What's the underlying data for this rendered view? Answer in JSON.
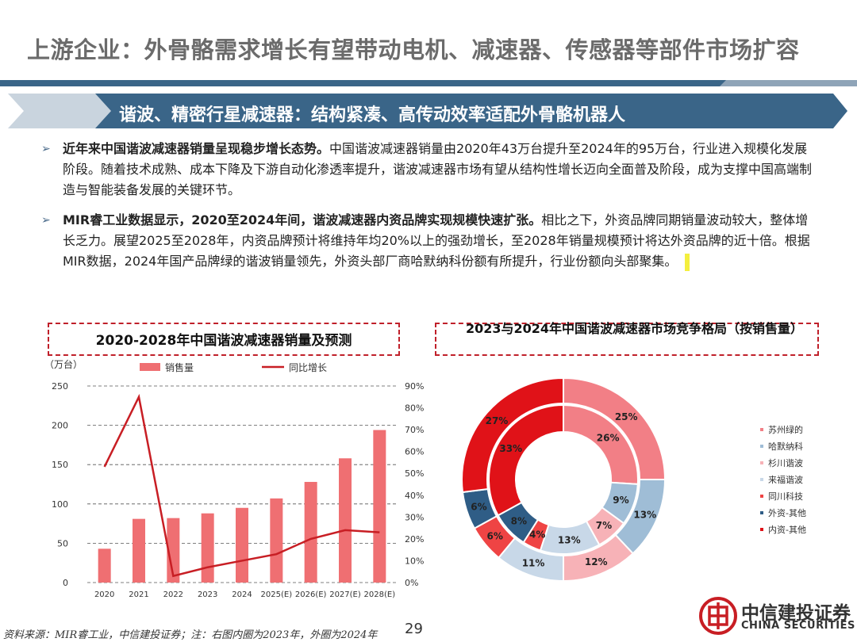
{
  "header": {
    "title": "上游企业：外骨骼需求增长有望带动电机、减速器、传感器等部件市场扩容",
    "banner": "谐波、精密行星减速器：结构紧凑、高传动效率适配外骨骼机器人"
  },
  "bullets": [
    {
      "mark": "➢",
      "bold": "近年来中国谐波减速器销量呈现稳步增长态势。",
      "text": "中国谐波减速器销量由2020年43万台提升至2024年的95万台，行业进入规模化发展阶段。随着技术成熟、成本下降及下游自动化渗透率提升，谐波减速器市场有望从结构性增长迈向全面普及阶段，成为支撑中国高端制造与智能装备发展的关键环节。"
    },
    {
      "mark": "➢",
      "bold": "MIR睿工业数据显示，2020至2024年间，谐波减速器内资品牌实现规模快速扩张。",
      "text": "相比之下，外资品牌同期销量波动较大，整体增长乏力。展望2025至2028年，内资品牌预计将维持年均20%以上的强劲增长，至2028年销量规模预计将达外资品牌的近十倍。根据MIR数据，2024年国产品牌绿的谐波销量领先，外资头部厂商哈默纳科份额有所提升，行业份额向头部聚集。"
    }
  ],
  "chart_data": [
    {
      "type": "bar",
      "title": "2020-2028年中国谐波减速器销量及预测",
      "unit_label": "（万台）",
      "categories": [
        "2020",
        "2021",
        "2022",
        "2023",
        "2024",
        "2025(E)",
        "2026(E)",
        "2027(E)",
        "2028(E)"
      ],
      "series": [
        {
          "name": "销售量",
          "type": "bar",
          "color": "#ef6f72",
          "axis": "left",
          "values": [
            43,
            81,
            82,
            88,
            95,
            107,
            128,
            158,
            194
          ]
        },
        {
          "name": "同比增长",
          "type": "line",
          "color": "#c81e24",
          "axis": "right",
          "values": [
            53,
            85,
            3,
            7,
            10,
            13,
            20,
            24,
            23
          ]
        }
      ],
      "ylim": [
        0,
        250
      ],
      "yticks": [
        "0",
        "50",
        "100",
        "150",
        "200",
        "250"
      ],
      "y2lim": [
        0,
        90
      ],
      "y2ticks": [
        "0%",
        "10%",
        "20%",
        "30%",
        "40%",
        "50%",
        "60%",
        "70%",
        "80%",
        "90%"
      ],
      "grid": true
    },
    {
      "type": "pie",
      "title": "2023与2024年中国谐波减速器市场竞争格局（按销售量）",
      "categories": [
        "苏州绿的",
        "哈默纳科",
        "杉川谐波",
        "来福谐波",
        "同川科技",
        "外资-其他",
        "内资-其他"
      ],
      "colors": [
        "#f27f86",
        "#9fbdd6",
        "#f7b2b7",
        "#c8d8e8",
        "#ef4444",
        "#2f5d86",
        "#e01218"
      ],
      "inner_2023": [
        26,
        9,
        7,
        13,
        4,
        8,
        33
      ],
      "outer_2024": [
        25,
        13,
        12,
        11,
        6,
        6,
        27
      ],
      "inner_labels": [
        "26%",
        "9%",
        "7%",
        "13%",
        "4%",
        "8%",
        "33%"
      ],
      "outer_labels": [
        "25%",
        "13%",
        "12%",
        "11%",
        "6%",
        "6%",
        "27%"
      ]
    }
  ],
  "footer": {
    "source": "资料来源：MIR睿工业，中信建投证券；注：右图内圈为2023年，外圈为2024年",
    "page": "29",
    "logo_cn": "中信建投证券",
    "logo_en": "CHINA SECURITIES"
  }
}
